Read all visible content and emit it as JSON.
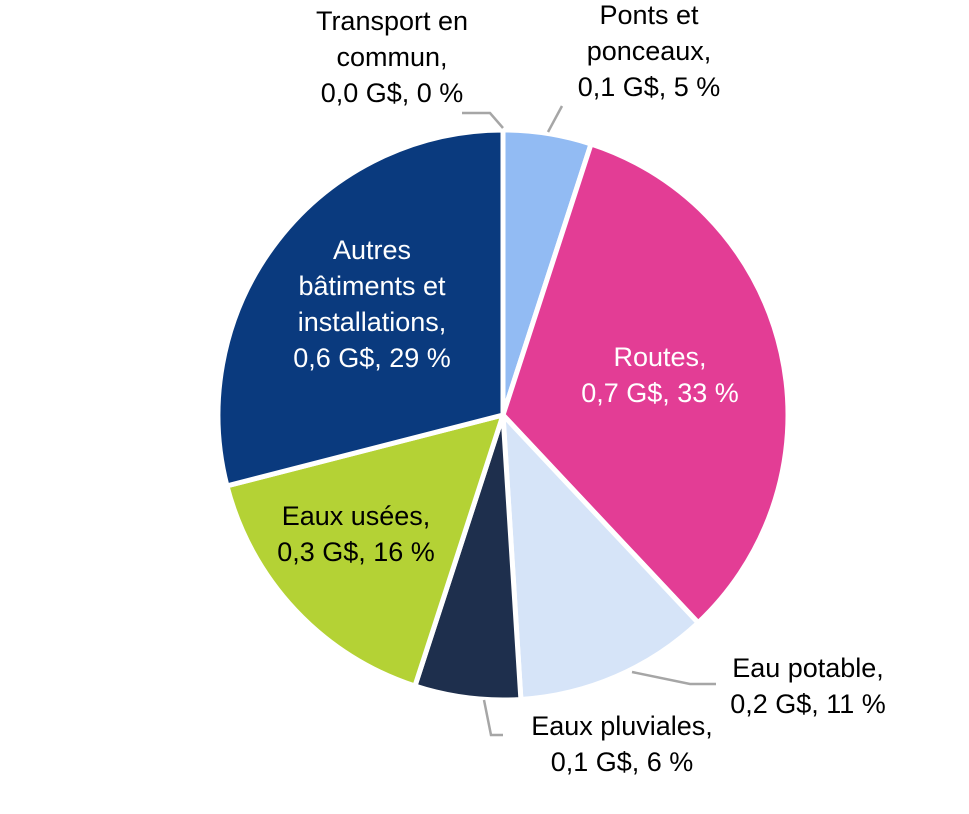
{
  "chart_data": {
    "type": "pie",
    "unit": "G$",
    "slices": [
      {
        "name": "Transport en commun",
        "value": 0.0,
        "percent": 0,
        "color": "#7f7f7f",
        "lines": [
          "Transport en",
          "commun,",
          "0,0 G$, 0 %"
        ]
      },
      {
        "name": "Ponts et ponceaux",
        "value": 0.1,
        "percent": 5,
        "color": "#92bbf3",
        "lines": [
          "Ponts et",
          "ponceaux,",
          "0,1 G$, 5 %"
        ]
      },
      {
        "name": "Routes",
        "value": 0.7,
        "percent": 33,
        "color": "#e33d95",
        "lines": [
          "Routes,",
          "0,7 G$, 33 %"
        ]
      },
      {
        "name": "Eau potable",
        "value": 0.2,
        "percent": 11,
        "color": "#d6e4f8",
        "lines": [
          "Eau potable,",
          "0,2 G$, 11 %"
        ]
      },
      {
        "name": "Eaux pluviales",
        "value": 0.1,
        "percent": 6,
        "color": "#1e2f4d",
        "lines": [
          "Eaux pluviales,",
          "0,1 G$, 6 %"
        ]
      },
      {
        "name": "Eaux usées",
        "value": 0.3,
        "percent": 16,
        "color": "#b4d235",
        "lines": [
          "Eaux usées,",
          "0,3 G$, 16 %"
        ]
      },
      {
        "name": "Autres bâtiments et installations",
        "value": 0.6,
        "percent": 29,
        "color": "#0a3a7e",
        "lines": [
          "Autres",
          "bâtiments et",
          "installations,",
          "0,6 G$, 29 %"
        ]
      }
    ]
  }
}
